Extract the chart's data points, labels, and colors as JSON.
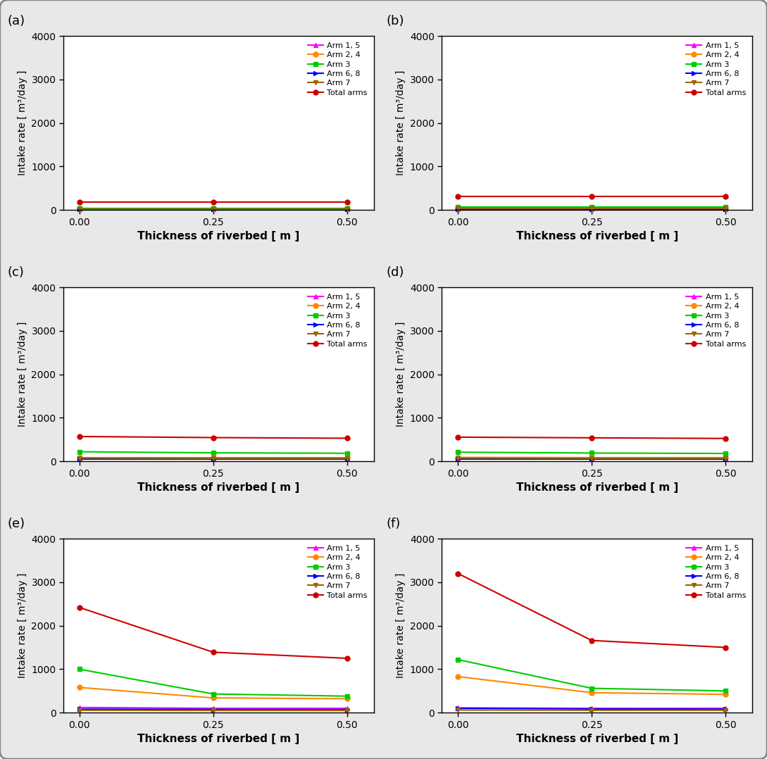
{
  "subplots": [
    {
      "label": "(a)",
      "series": {
        "Arm 1, 5": [
          20,
          20,
          20
        ],
        "Arm 2, 4": [
          30,
          30,
          30
        ],
        "Arm 3": [
          40,
          40,
          40
        ],
        "Arm 6, 8": [
          15,
          15,
          15
        ],
        "Arm 7": [
          25,
          25,
          25
        ],
        "Total arms": [
          175,
          175,
          175
        ]
      }
    },
    {
      "label": "(b)",
      "series": {
        "Arm 1, 5": [
          20,
          20,
          20
        ],
        "Arm 2, 4": [
          40,
          40,
          40
        ],
        "Arm 3": [
          60,
          60,
          60
        ],
        "Arm 6, 8": [
          20,
          20,
          20
        ],
        "Arm 7": [
          30,
          30,
          30
        ],
        "Total arms": [
          310,
          310,
          310
        ]
      }
    },
    {
      "label": "(c)",
      "series": {
        "Arm 1, 5": [
          70,
          70,
          70
        ],
        "Arm 2, 4": [
          90,
          90,
          90
        ],
        "Arm 3": [
          220,
          195,
          185
        ],
        "Arm 6, 8": [
          55,
          55,
          55
        ],
        "Arm 7": [
          75,
          70,
          70
        ],
        "Total arms": [
          570,
          545,
          530
        ]
      }
    },
    {
      "label": "(d)",
      "series": {
        "Arm 1, 5": [
          65,
          65,
          65
        ],
        "Arm 2, 4": [
          90,
          85,
          85
        ],
        "Arm 3": [
          210,
          190,
          180
        ],
        "Arm 6, 8": [
          55,
          55,
          55
        ],
        "Arm 7": [
          75,
          70,
          70
        ],
        "Total arms": [
          555,
          540,
          525
        ]
      }
    },
    {
      "label": "(e)",
      "series": {
        "Arm 1, 5": [
          120,
          100,
          100
        ],
        "Arm 2, 4": [
          580,
          340,
          320
        ],
        "Arm 3": [
          1000,
          430,
          380
        ],
        "Arm 6, 8": [
          80,
          75,
          70
        ],
        "Arm 7": [
          55,
          50,
          50
        ],
        "Total arms": [
          2420,
          1390,
          1250
        ]
      }
    },
    {
      "label": "(f)",
      "series": {
        "Arm 1, 5": [
          110,
          100,
          100
        ],
        "Arm 2, 4": [
          830,
          460,
          420
        ],
        "Arm 3": [
          1220,
          560,
          500
        ],
        "Arm 6, 8": [
          100,
          85,
          80
        ],
        "Arm 7": [
          60,
          55,
          55
        ],
        "Total arms": [
          3200,
          1660,
          1500
        ]
      }
    }
  ],
  "x": [
    0.0,
    0.25,
    0.5
  ],
  "colors": {
    "Arm 1, 5": "#ff00ff",
    "Arm 2, 4": "#ff8800",
    "Arm 3": "#00cc00",
    "Arm 6, 8": "#0000ff",
    "Arm 7": "#996600",
    "Total arms": "#cc0000"
  },
  "markers": {
    "Arm 1, 5": "^",
    "Arm 2, 4": "o",
    "Arm 3": "s",
    "Arm 6, 8": ">",
    "Arm 7": "v",
    "Total arms": "o"
  },
  "xlabel": "Thickness of riverbed [ m ]",
  "ylabel": "Intake rate [ m³/day ]",
  "ylim": [
    0,
    4000
  ],
  "yticks": [
    0,
    1000,
    2000,
    3000,
    4000
  ],
  "xticks": [
    0.0,
    0.25,
    0.5
  ],
  "figsize": [
    10.89,
    10.78
  ],
  "dpi": 100,
  "fig_bg": "#e8e8e8",
  "axes_bg": "#ffffff"
}
